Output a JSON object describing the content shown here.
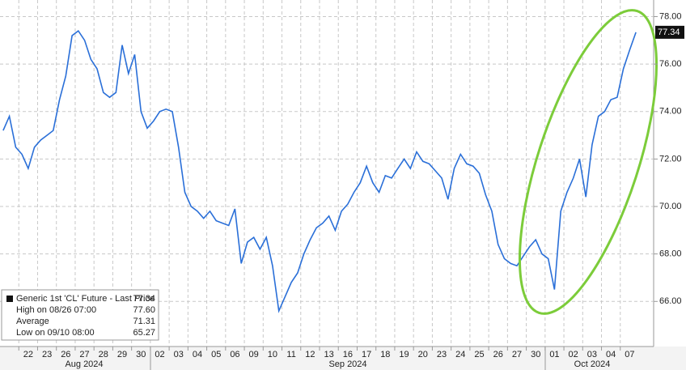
{
  "chart_data": {
    "type": "line",
    "categories": [
      null,
      null,
      null,
      "22",
      null,
      null,
      "23",
      null,
      null,
      "26",
      null,
      null,
      "27",
      null,
      null,
      "28",
      null,
      null,
      "29",
      null,
      null,
      "30",
      null,
      null,
      "02",
      null,
      null,
      "03",
      null,
      null,
      "04",
      null,
      null,
      "05",
      null,
      null,
      "06",
      null,
      null,
      "09",
      null,
      null,
      "10",
      null,
      null,
      "11",
      null,
      null,
      "12",
      null,
      null,
      "13",
      null,
      null,
      "16",
      null,
      null,
      "17",
      null,
      null,
      "18",
      null,
      null,
      "19",
      null,
      null,
      "20",
      null,
      null,
      "23",
      null,
      null,
      "24",
      null,
      null,
      "25",
      null,
      null,
      "26",
      null,
      null,
      "27",
      null,
      null,
      "30",
      null,
      null,
      "01",
      null,
      null,
      "02",
      null,
      null,
      "03",
      null,
      null,
      "04",
      null,
      null,
      "07",
      null,
      null
    ],
    "months": [
      "Aug 2024",
      "Sep 2024",
      "Oct 2024"
    ],
    "series": [
      {
        "name": "Generic 1st 'CL' Future - Last Price",
        "color": "#2a6fd8",
        "values": [
          73.2,
          73.8,
          72.5,
          72.2,
          71.6,
          72.5,
          72.8,
          73.0,
          73.2,
          74.5,
          75.5,
          77.2,
          77.4,
          77.0,
          76.2,
          75.8,
          74.8,
          74.6,
          74.8,
          76.8,
          75.6,
          76.4,
          74.0,
          73.3,
          73.6,
          74.0,
          74.1,
          74.0,
          72.5,
          70.6,
          70.0,
          69.8,
          69.5,
          69.8,
          69.4,
          69.3,
          69.2,
          69.9,
          67.6,
          68.5,
          68.7,
          68.2,
          68.7,
          67.5,
          65.6,
          66.2,
          66.8,
          67.2,
          68.0,
          68.6,
          69.1,
          69.3,
          69.6,
          69.0,
          69.8,
          70.1,
          70.6,
          71.0,
          71.7,
          71.0,
          70.6,
          71.3,
          71.2,
          71.6,
          72.0,
          71.6,
          72.3,
          71.9,
          71.8,
          71.5,
          71.2,
          70.3,
          71.6,
          72.2,
          71.8,
          71.7,
          71.4,
          70.5,
          69.8,
          68.4,
          67.8,
          67.6,
          67.5,
          67.9,
          68.3,
          68.6,
          68.0,
          67.8,
          66.5,
          69.8,
          70.6,
          71.2,
          72.0,
          70.4,
          72.6,
          73.8,
          74.0,
          74.5,
          74.6,
          75.8,
          76.6,
          77.34
        ]
      }
    ],
    "last_price": 77.34,
    "stats": [
      {
        "label": "High on 08/26 07:00",
        "value": {
          "value": 77.6,
          "label": "77.60"
        }
      },
      {
        "label": "Average",
        "value": 71.31
      },
      {
        "label": "Low on 09/10 08:00",
        "value": 65.27
      }
    ],
    "ylim": [
      64.1,
      78.7
    ],
    "yticks": [
      {
        "value": 66,
        "label": "66.00"
      },
      {
        "value": 68,
        "label": "68.00"
      },
      {
        "value": 70,
        "label": "70.00"
      },
      {
        "value": 72,
        "label": "72.00"
      },
      {
        "value": 74,
        "label": "74.00"
      },
      {
        "value": 76,
        "label": "76.00"
      },
      {
        "value": 78,
        "label": "78.00"
      }
    ],
    "grid": true
  }
}
